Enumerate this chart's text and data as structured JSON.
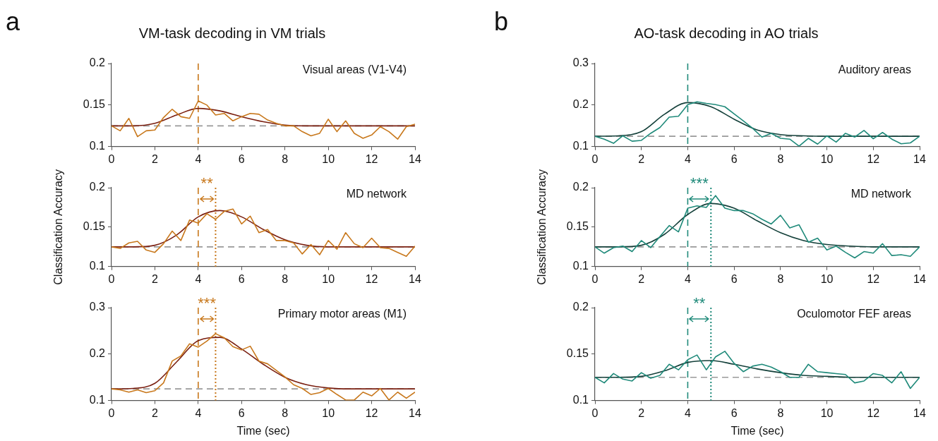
{
  "chart_data": [
    {
      "type": "line",
      "title": "VM-task decoding in VM trials",
      "subtitle": "Visual areas (V1-V4)",
      "annotations": [
        "a"
      ],
      "x": [
        0,
        0.4,
        0.8,
        1.2,
        1.6,
        2,
        2.4,
        2.8,
        3.2,
        3.6,
        4,
        4.4,
        4.8,
        5.2,
        5.6,
        6,
        6.4,
        6.8,
        7.2,
        7.6,
        8,
        8.4,
        8.8,
        9.2,
        9.6,
        10,
        10.4,
        10.8,
        11.2,
        11.6,
        12,
        12.4,
        12.8,
        13.2,
        13.6,
        14
      ],
      "series": [
        {
          "color": "#c8781c",
          "values": [
            0.125,
            0.119,
            0.134,
            0.112,
            0.119,
            0.12,
            0.135,
            0.145,
            0.136,
            0.134,
            0.155,
            0.15,
            0.138,
            0.14,
            0.131,
            0.136,
            0.14,
            0.139,
            0.132,
            0.128,
            0.125,
            0.125,
            0.118,
            0.113,
            0.116,
            0.133,
            0.118,
            0.131,
            0.116,
            0.11,
            0.114,
            0.124,
            0.118,
            0.109,
            0.124,
            0.127
          ]
        },
        {
          "color": "#7a1f10",
          "x": [
            0,
            1,
            2,
            3,
            4,
            5,
            6,
            7,
            8,
            9,
            10,
            11,
            12,
            13,
            14
          ],
          "values": [
            0.125,
            0.125,
            0.128,
            0.138,
            0.146,
            0.143,
            0.136,
            0.13,
            0.126,
            0.125,
            0.125,
            0.125,
            0.125,
            0.125,
            0.125
          ]
        }
      ],
      "xlim": [
        0,
        14
      ],
      "xticks": [
        0,
        2,
        4,
        6,
        8,
        10,
        12,
        14
      ],
      "ylim": [
        0.1,
        0.2
      ],
      "yticks": [
        0.1,
        0.15,
        0.2
      ],
      "ref_lines": [
        {
          "axis": "y",
          "value": 0.125,
          "color": "#999999",
          "line_style": "dashed"
        },
        {
          "axis": "x",
          "value": 4,
          "color": "#c8781c",
          "line_style": "dashed"
        }
      ],
      "grid": false,
      "legend": false,
      "marker": "none",
      "line_style": "solid"
    },
    {
      "type": "line",
      "subtitle": "MD network",
      "ylabel": "Classification Accuracy",
      "annotations": [
        "**"
      ],
      "x": [
        0,
        0.4,
        0.8,
        1.2,
        1.6,
        2,
        2.4,
        2.8,
        3.2,
        3.6,
        4,
        4.4,
        4.8,
        5.2,
        5.6,
        6,
        6.4,
        6.8,
        7.2,
        7.6,
        8,
        8.4,
        8.8,
        9.2,
        9.6,
        10,
        10.4,
        10.8,
        11.2,
        11.6,
        12,
        12.4,
        12.8,
        13.2,
        13.6,
        14
      ],
      "series": [
        {
          "color": "#c8781c",
          "values": [
            0.125,
            0.123,
            0.13,
            0.132,
            0.121,
            0.118,
            0.129,
            0.145,
            0.133,
            0.159,
            0.155,
            0.167,
            0.16,
            0.17,
            0.173,
            0.154,
            0.164,
            0.143,
            0.147,
            0.133,
            0.133,
            0.13,
            0.116,
            0.128,
            0.115,
            0.133,
            0.122,
            0.143,
            0.129,
            0.124,
            0.136,
            0.124,
            0.123,
            0.118,
            0.113,
            0.126
          ]
        },
        {
          "color": "#7a1f10",
          "x": [
            0,
            1,
            2,
            3,
            4,
            5,
            6,
            7,
            8,
            9,
            10,
            11,
            12,
            13,
            14
          ],
          "values": [
            0.125,
            0.125,
            0.127,
            0.14,
            0.163,
            0.171,
            0.163,
            0.147,
            0.134,
            0.127,
            0.125,
            0.125,
            0.125,
            0.125,
            0.125
          ]
        }
      ],
      "xlim": [
        0,
        14
      ],
      "xticks": [
        0,
        2,
        4,
        6,
        8,
        10,
        12,
        14
      ],
      "ylim": [
        0.1,
        0.2
      ],
      "yticks": [
        0.1,
        0.15,
        0.2
      ],
      "ref_lines": [
        {
          "axis": "y",
          "value": 0.125,
          "color": "#999999",
          "line_style": "dashed"
        },
        {
          "axis": "x",
          "value": 4,
          "color": "#c8781c",
          "line_style": "dashed"
        },
        {
          "axis": "x",
          "value": 4.8,
          "color": "#c8781c",
          "line_style": "dotted"
        }
      ],
      "grid": false,
      "legend": false,
      "marker": "none",
      "line_style": "solid"
    },
    {
      "type": "line",
      "subtitle": "Primary motor areas (M1)",
      "xlabel": "Time (sec)",
      "annotations": [
        "***"
      ],
      "x": [
        0,
        0.4,
        0.8,
        1.2,
        1.6,
        2,
        2.4,
        2.8,
        3.2,
        3.6,
        4,
        4.4,
        4.8,
        5.2,
        5.6,
        6,
        6.4,
        6.8,
        7.2,
        7.6,
        8,
        8.4,
        8.8,
        9.2,
        9.6,
        10,
        10.4,
        10.8,
        11.2,
        11.6,
        12,
        12.4,
        12.8,
        13.2,
        13.6,
        14
      ],
      "series": [
        {
          "color": "#c8781c",
          "values": [
            0.125,
            0.123,
            0.118,
            0.123,
            0.117,
            0.121,
            0.138,
            0.185,
            0.196,
            0.222,
            0.215,
            0.228,
            0.244,
            0.235,
            0.216,
            0.209,
            0.217,
            0.185,
            0.179,
            0.165,
            0.151,
            0.134,
            0.126,
            0.113,
            0.117,
            0.126,
            0.113,
            0.101,
            0.101,
            0.118,
            0.11,
            0.126,
            0.101,
            0.118,
            0.105,
            0.118
          ]
        },
        {
          "color": "#7a1f10",
          "x": [
            0,
            1,
            2,
            3,
            4,
            5,
            6,
            7,
            8,
            9,
            10,
            11,
            12,
            13,
            14
          ],
          "values": [
            0.125,
            0.126,
            0.137,
            0.183,
            0.229,
            0.236,
            0.211,
            0.178,
            0.15,
            0.134,
            0.127,
            0.125,
            0.125,
            0.125,
            0.125
          ]
        }
      ],
      "xlim": [
        0,
        14
      ],
      "xticks": [
        0,
        2,
        4,
        6,
        8,
        10,
        12,
        14
      ],
      "ylim": [
        0.1,
        0.3
      ],
      "yticks": [
        0.1,
        0.2,
        0.3
      ],
      "ref_lines": [
        {
          "axis": "y",
          "value": 0.125,
          "color": "#999999",
          "line_style": "dashed"
        },
        {
          "axis": "x",
          "value": 4,
          "color": "#c8781c",
          "line_style": "dashed"
        },
        {
          "axis": "x",
          "value": 4.8,
          "color": "#c8781c",
          "line_style": "dotted"
        }
      ],
      "grid": false,
      "legend": false,
      "marker": "none",
      "line_style": "solid"
    },
    {
      "type": "line",
      "title": "AO-task decoding in AO trials",
      "subtitle": "Auditory areas",
      "annotations": [
        "b"
      ],
      "x": [
        0,
        0.4,
        0.8,
        1.2,
        1.6,
        2,
        2.4,
        2.8,
        3.2,
        3.6,
        4,
        4.4,
        4.8,
        5.2,
        5.6,
        6,
        6.4,
        6.8,
        7.2,
        7.6,
        8,
        8.4,
        8.8,
        9.2,
        9.6,
        10,
        10.4,
        10.8,
        11.2,
        11.6,
        12,
        12.4,
        12.8,
        13.2,
        13.6,
        14
      ],
      "series": [
        {
          "color": "#1f8a7a",
          "values": [
            0.125,
            0.118,
            0.108,
            0.126,
            0.113,
            0.115,
            0.132,
            0.146,
            0.171,
            0.173,
            0.201,
            0.208,
            0.204,
            0.201,
            0.196,
            0.179,
            0.162,
            0.144,
            0.123,
            0.132,
            0.12,
            0.118,
            0.101,
            0.12,
            0.106,
            0.126,
            0.111,
            0.132,
            0.123,
            0.139,
            0.119,
            0.134,
            0.118,
            0.107,
            0.109,
            0.125
          ]
        },
        {
          "color": "#14403a",
          "x": [
            0,
            1,
            2,
            3,
            4,
            5,
            6,
            7,
            8,
            9,
            10,
            11,
            12,
            13,
            14
          ],
          "values": [
            0.125,
            0.126,
            0.136,
            0.178,
            0.206,
            0.196,
            0.166,
            0.14,
            0.129,
            0.126,
            0.125,
            0.125,
            0.125,
            0.125,
            0.125
          ]
        }
      ],
      "xlim": [
        0,
        14
      ],
      "xticks": [
        0,
        2,
        4,
        6,
        8,
        10,
        12,
        14
      ],
      "ylim": [
        0.1,
        0.3
      ],
      "yticks": [
        0.1,
        0.2,
        0.3
      ],
      "ref_lines": [
        {
          "axis": "y",
          "value": 0.125,
          "color": "#999999",
          "line_style": "dashed"
        },
        {
          "axis": "x",
          "value": 4,
          "color": "#1f8a7a",
          "line_style": "dashed"
        }
      ],
      "grid": false,
      "legend": false,
      "marker": "none",
      "line_style": "solid"
    },
    {
      "type": "line",
      "subtitle": "MD network",
      "ylabel": "Classification Accuracy",
      "annotations": [
        "***"
      ],
      "x": [
        0,
        0.4,
        0.8,
        1.2,
        1.6,
        2,
        2.4,
        2.8,
        3.2,
        3.6,
        4,
        4.4,
        4.8,
        5.2,
        5.6,
        6,
        6.4,
        6.8,
        7.2,
        7.6,
        8,
        8.4,
        8.8,
        9.2,
        9.6,
        10,
        10.4,
        10.8,
        11.2,
        11.6,
        12,
        12.4,
        12.8,
        13.2,
        13.6,
        14
      ],
      "series": [
        {
          "color": "#1f8a7a",
          "values": [
            0.125,
            0.117,
            0.124,
            0.126,
            0.119,
            0.133,
            0.124,
            0.138,
            0.152,
            0.144,
            0.174,
            0.177,
            0.175,
            0.19,
            0.174,
            0.171,
            0.171,
            0.167,
            0.16,
            0.154,
            0.165,
            0.149,
            0.153,
            0.131,
            0.136,
            0.121,
            0.126,
            0.118,
            0.111,
            0.119,
            0.117,
            0.129,
            0.114,
            0.115,
            0.113,
            0.125
          ]
        },
        {
          "color": "#14403a",
          "x": [
            0,
            1,
            2,
            3,
            4,
            5,
            6,
            7,
            8,
            9,
            10,
            11,
            12,
            13,
            14
          ],
          "values": [
            0.125,
            0.125,
            0.127,
            0.141,
            0.166,
            0.18,
            0.174,
            0.158,
            0.143,
            0.133,
            0.128,
            0.126,
            0.125,
            0.125,
            0.125
          ]
        }
      ],
      "xlim": [
        0,
        14
      ],
      "xticks": [
        0,
        2,
        4,
        6,
        8,
        10,
        12,
        14
      ],
      "ylim": [
        0.1,
        0.2
      ],
      "yticks": [
        0.1,
        0.15,
        0.2
      ],
      "ref_lines": [
        {
          "axis": "y",
          "value": 0.125,
          "color": "#999999",
          "line_style": "dashed"
        },
        {
          "axis": "x",
          "value": 4,
          "color": "#1f8a7a",
          "line_style": "dashed"
        },
        {
          "axis": "x",
          "value": 5,
          "color": "#1f8a7a",
          "line_style": "dotted"
        }
      ],
      "grid": false,
      "legend": false,
      "marker": "none",
      "line_style": "solid"
    },
    {
      "type": "line",
      "subtitle": "Oculomotor FEF areas",
      "xlabel": "Time (sec)",
      "annotations": [
        "**"
      ],
      "x": [
        0,
        0.4,
        0.8,
        1.2,
        1.6,
        2,
        2.4,
        2.8,
        3.2,
        3.6,
        4,
        4.4,
        4.8,
        5.2,
        5.6,
        6,
        6.4,
        6.8,
        7.2,
        7.6,
        8,
        8.4,
        8.8,
        9.2,
        9.6,
        10,
        10.4,
        10.8,
        11.2,
        11.6,
        12,
        12.4,
        12.8,
        13.2,
        13.6,
        14
      ],
      "series": [
        {
          "color": "#1f8a7a",
          "values": [
            0.125,
            0.119,
            0.129,
            0.123,
            0.121,
            0.13,
            0.124,
            0.127,
            0.139,
            0.133,
            0.144,
            0.149,
            0.133,
            0.147,
            0.153,
            0.14,
            0.131,
            0.137,
            0.139,
            0.136,
            0.131,
            0.125,
            0.125,
            0.139,
            0.131,
            0.13,
            0.129,
            0.128,
            0.119,
            0.121,
            0.129,
            0.127,
            0.119,
            0.131,
            0.113,
            0.125
          ]
        },
        {
          "color": "#14403a",
          "x": [
            0,
            1,
            2,
            3,
            4,
            5,
            6,
            7,
            8,
            9,
            10,
            11,
            12,
            13,
            14
          ],
          "values": [
            0.125,
            0.125,
            0.126,
            0.132,
            0.141,
            0.143,
            0.139,
            0.134,
            0.13,
            0.127,
            0.126,
            0.125,
            0.125,
            0.125,
            0.125
          ]
        }
      ],
      "xlim": [
        0,
        14
      ],
      "xticks": [
        0,
        2,
        4,
        6,
        8,
        10,
        12,
        14
      ],
      "ylim": [
        0.1,
        0.2
      ],
      "yticks": [
        0.1,
        0.15,
        0.2
      ],
      "ref_lines": [
        {
          "axis": "y",
          "value": 0.125,
          "color": "#999999",
          "line_style": "dashed"
        },
        {
          "axis": "x",
          "value": 4,
          "color": "#1f8a7a",
          "line_style": "dashed"
        },
        {
          "axis": "x",
          "value": 5,
          "color": "#1f8a7a",
          "line_style": "dotted"
        }
      ],
      "grid": false,
      "legend": false,
      "marker": "none",
      "line_style": "solid"
    }
  ]
}
